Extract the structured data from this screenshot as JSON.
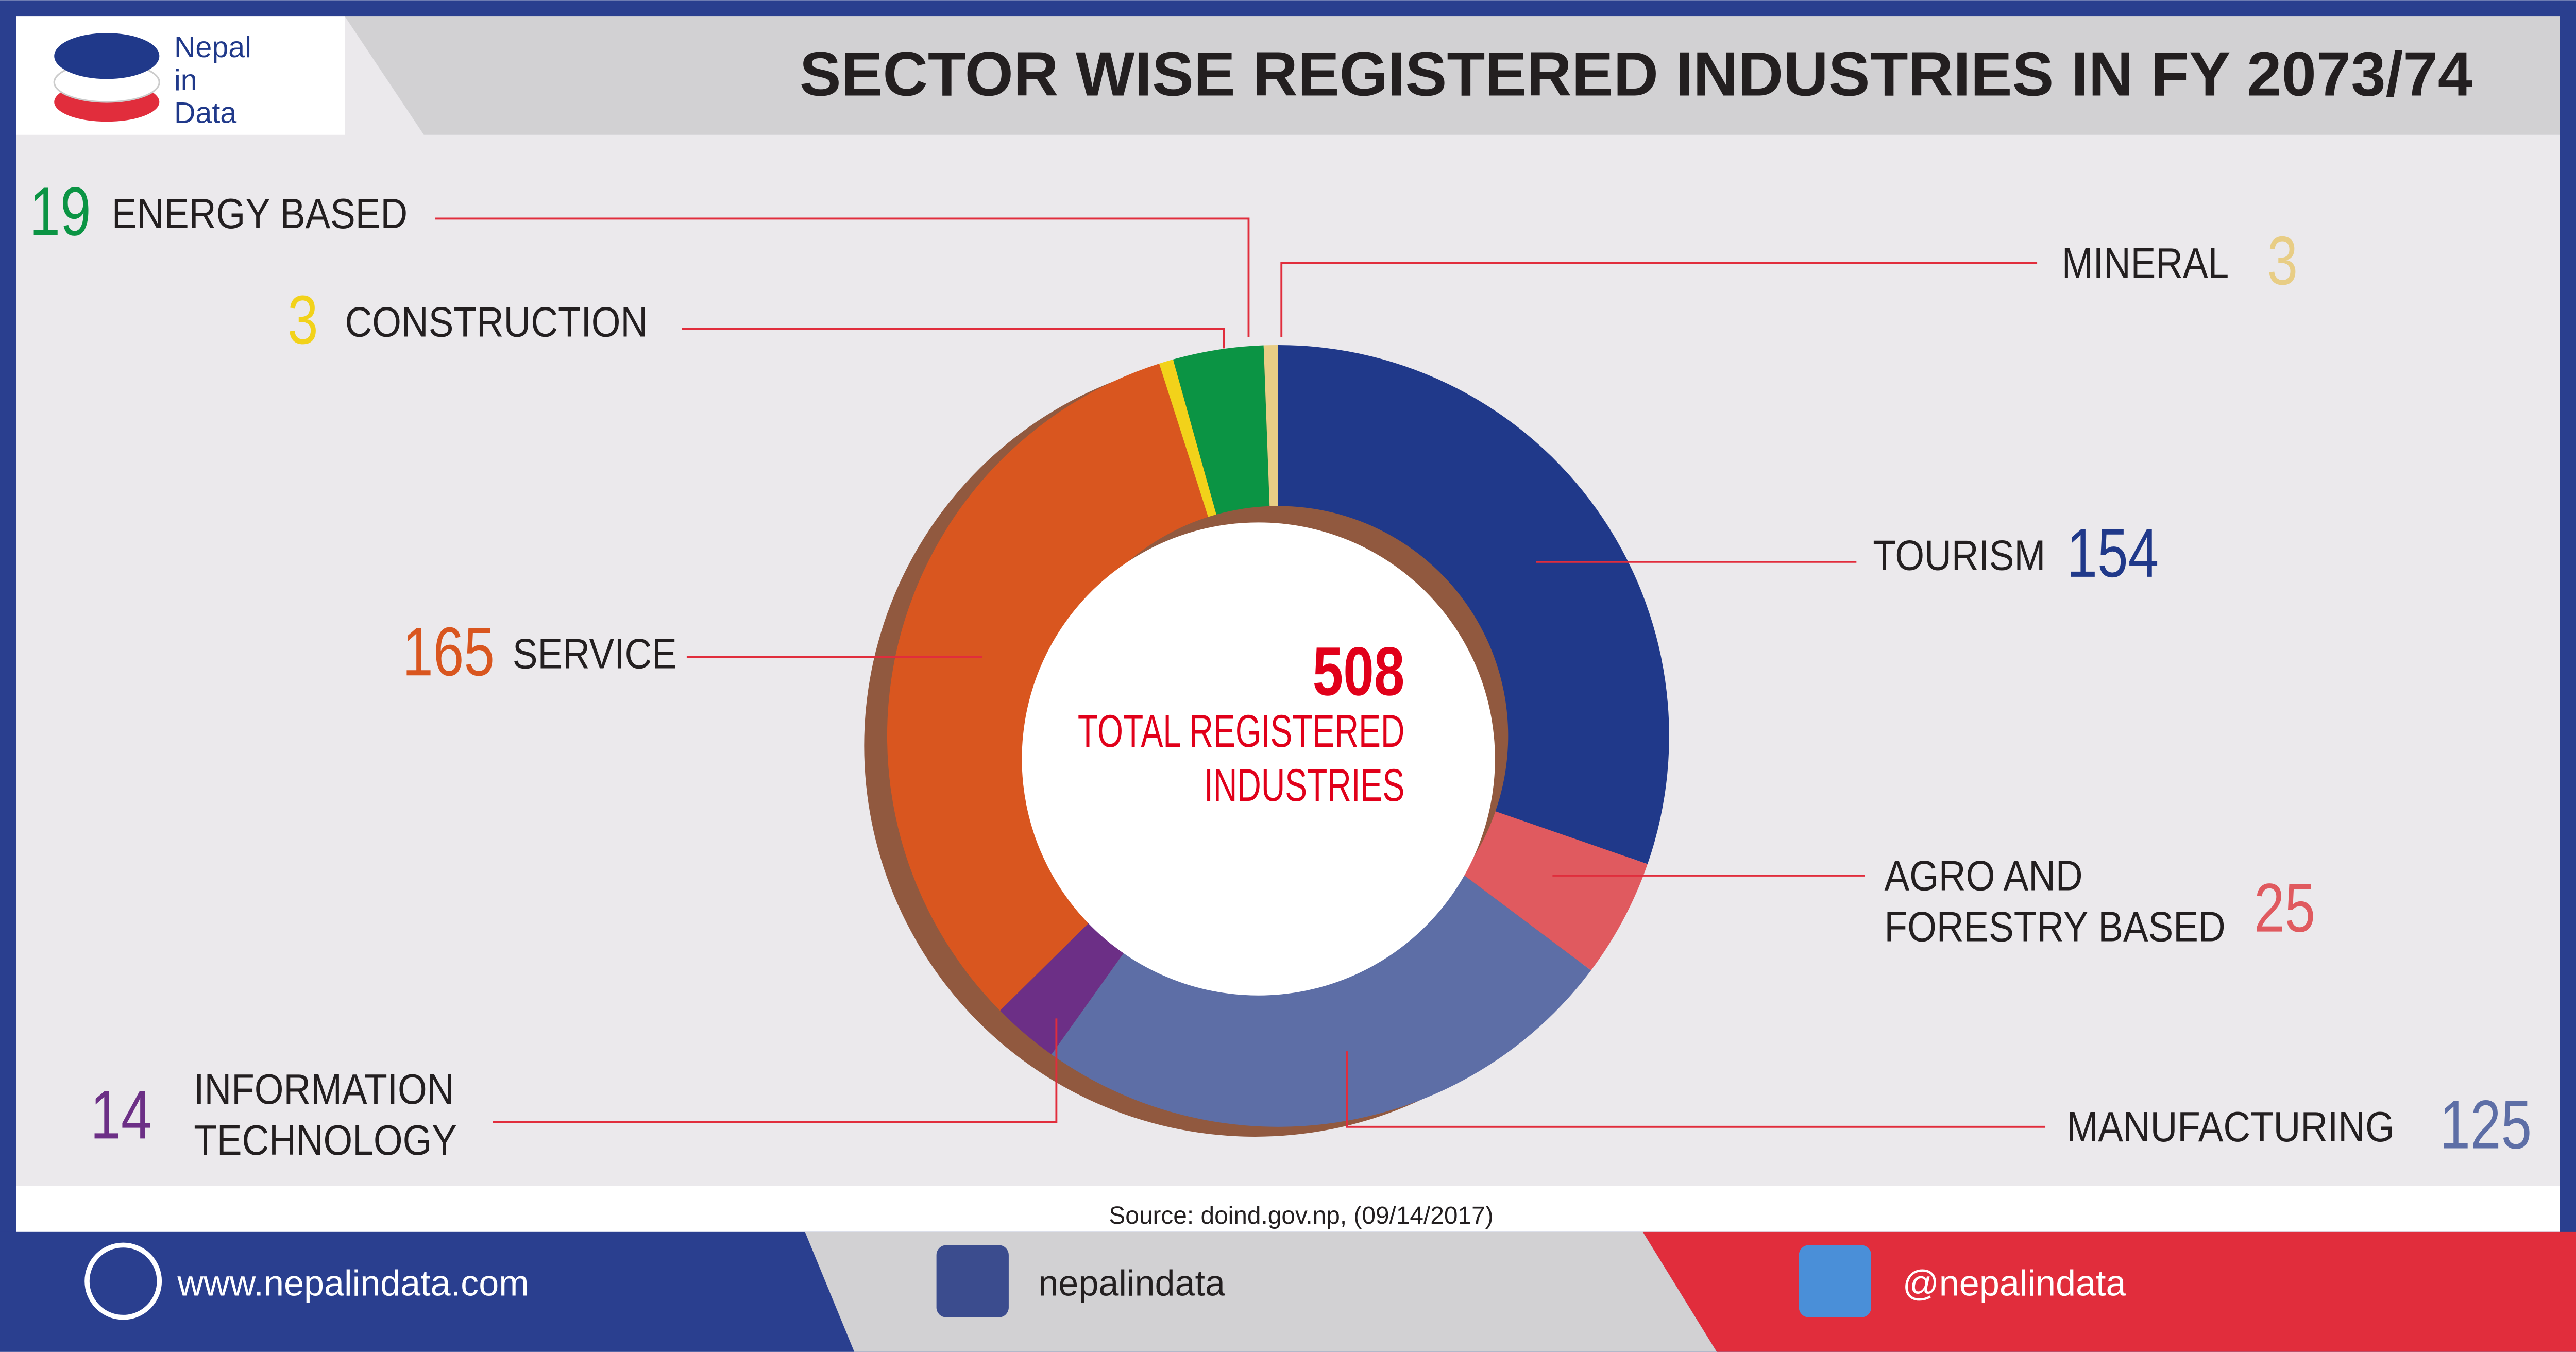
{
  "logo": [
    "Nepal",
    "in",
    "Data"
  ],
  "chart_data": {
    "type": "donut",
    "title": "SECTOR WISE REGISTERED INDUSTRIES IN FY 2073/74",
    "categories": [
      "TOURISM",
      "AGRO AND\nFORESTRY BASED",
      "MANUFACTURING",
      "INFORMATION\nTECHNOLOGY",
      "SERVICE",
      "CONSTRUCTION",
      "ENERGY BASED",
      "MINERAL"
    ],
    "values": [
      154,
      25,
      125,
      14,
      165,
      3,
      19,
      3
    ],
    "colors": [
      "#20398a",
      "#e05a5f",
      "#5d6ea6",
      "#6c2f86",
      "#d9561f",
      "#f2d21a",
      "#0b9444",
      "#e8cd85"
    ],
    "total": 508,
    "total_label": "TOTAL REGISTERED\nINDUSTRIES",
    "source": "Source: doind.gov.np, (09/14/2017)"
  },
  "footer": {
    "website": "www.nepalindata.com",
    "facebook": "nepalindata",
    "twitter": "@nepalindata"
  }
}
